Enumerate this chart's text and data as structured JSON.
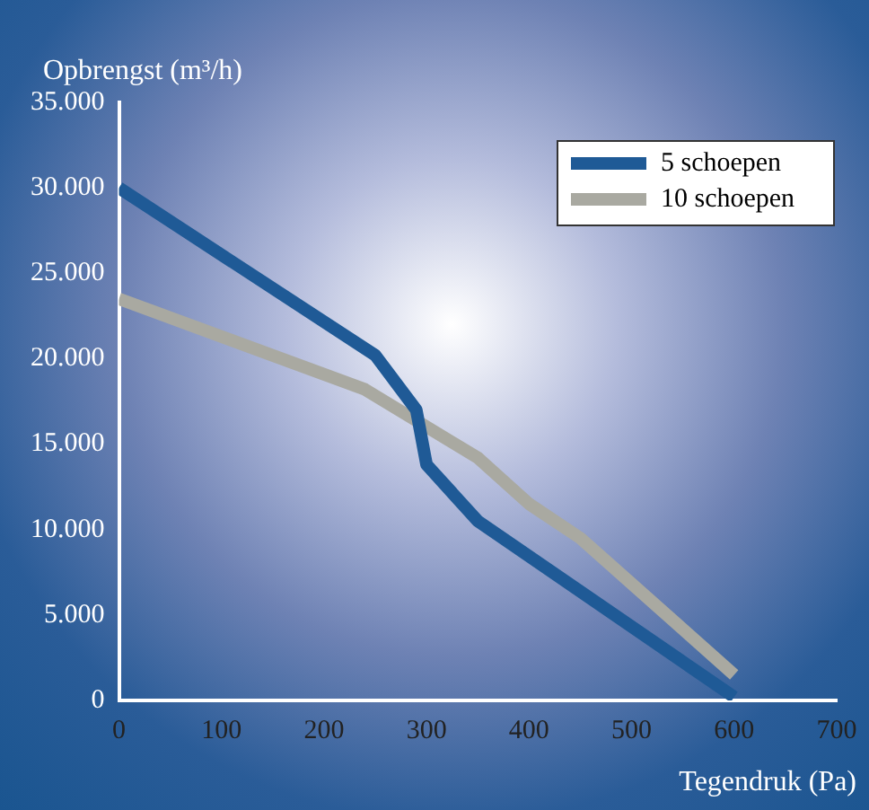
{
  "chart_data": {
    "type": "line",
    "ylabel": "Opbrengst (m³/h)",
    "xlabel": "Tegendruk (Pa)",
    "xlim": [
      0,
      700
    ],
    "xticks": [
      0,
      100,
      200,
      300,
      400,
      500,
      600,
      700
    ],
    "ylim": [
      0,
      35000
    ],
    "yticks": [
      {
        "value": 0,
        "label": "0"
      },
      {
        "value": 5000,
        "label": "5.000"
      },
      {
        "value": 10000,
        "label": "10.000"
      },
      {
        "value": 15000,
        "label": "15.000"
      },
      {
        "value": 20000,
        "label": "20.000"
      },
      {
        "value": 25000,
        "label": "25.000"
      },
      {
        "value": 30000,
        "label": "30.000"
      },
      {
        "value": 35000,
        "label": "35.000"
      }
    ],
    "series": [
      {
        "name": "5 schoepen",
        "color": "#1f5a96",
        "x": [
          0,
          250,
          290,
          300,
          350,
          600
        ],
        "values": [
          30000,
          20200,
          17000,
          13800,
          10500,
          200
        ]
      },
      {
        "name": "10 schoepen",
        "color": "#a9a9a1",
        "x": [
          0,
          240,
          350,
          400,
          450,
          600
        ],
        "values": [
          23500,
          18200,
          14200,
          11500,
          9500,
          1500
        ]
      }
    ],
    "grid": false,
    "legend": "top right",
    "marker": "none",
    "line_style": "solid"
  }
}
